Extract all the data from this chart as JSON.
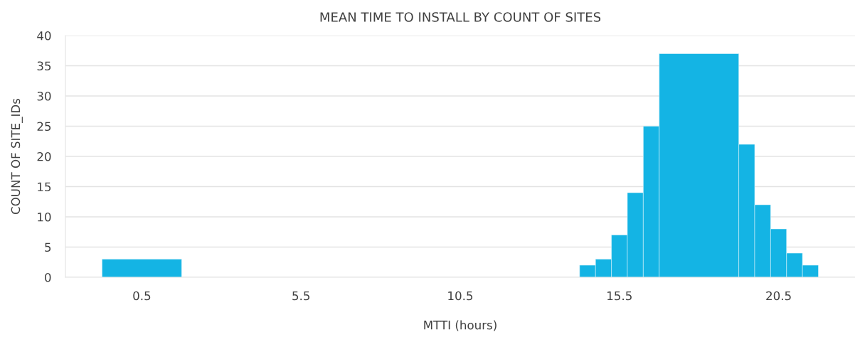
{
  "chart_data": {
    "type": "histogram",
    "title": "MEAN TIME TO INSTALL BY COUNT OF SITES",
    "xlabel": "MTTI (hours)",
    "ylabel": "COUNT OF SITE_IDs",
    "bins": [
      -0.75,
      1.75,
      14.25,
      14.75,
      15.25,
      15.75,
      16.25,
      16.75,
      19.25,
      19.75,
      20.25,
      20.75,
      21.25,
      21.75
    ],
    "values": [
      3,
      0,
      2,
      3,
      7,
      14,
      25,
      37,
      22,
      12,
      8,
      4,
      2
    ],
    "color": "#14b4e4",
    "xlim": [
      -1.9,
      22.9
    ],
    "xticks": [
      0.5,
      5.5,
      10.5,
      15.5,
      20.5
    ],
    "ylim": [
      0,
      40
    ],
    "yticks": [
      0,
      5,
      10,
      15,
      20,
      25,
      30,
      35,
      40
    ],
    "grid": "y",
    "legend": false
  }
}
